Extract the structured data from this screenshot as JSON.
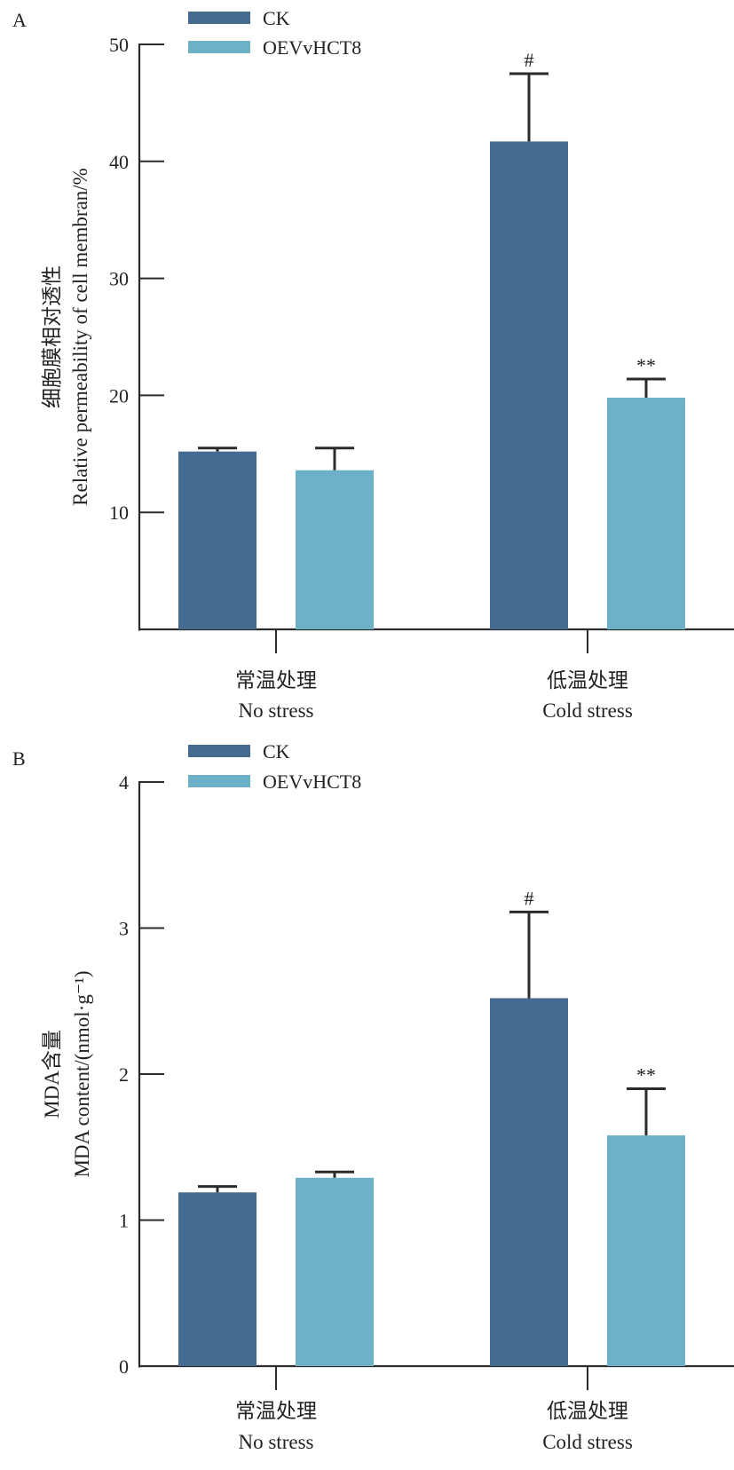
{
  "colors": {
    "CK": "#466b90",
    "OEVvHCT8": "#6cb1c6",
    "axis": "#2b2b2b"
  },
  "chart_data": [
    {
      "type": "bar",
      "panel": "A",
      "title": "",
      "xlabel": "",
      "ylabel_cn": "细胞膜相对透性",
      "ylabel": "Relative permeability of cell membran/%",
      "ylim": [
        0,
        50
      ],
      "yticks": [
        10,
        20,
        30,
        40,
        50
      ],
      "categories": [
        {
          "cn": "常温处理",
          "en": "No stress"
        },
        {
          "cn": "低温处理",
          "en": "Cold stress"
        }
      ],
      "legend": {
        "position": "top-left",
        "entries": [
          "CK",
          "OEVvHCT8"
        ]
      },
      "series": [
        {
          "name": "CK",
          "values": [
            15.2,
            41.7
          ],
          "errors": [
            0.3,
            5.8
          ],
          "annotations": [
            "",
            "#"
          ]
        },
        {
          "name": "OEVvHCT8",
          "values": [
            13.6,
            19.8
          ],
          "errors": [
            1.9,
            1.6
          ],
          "annotations": [
            "",
            "**"
          ]
        }
      ]
    },
    {
      "type": "bar",
      "panel": "B",
      "title": "",
      "xlabel": "",
      "ylabel_cn": "MDA含量",
      "ylabel": "MDA content/(nmol·g⁻¹)",
      "ylim": [
        0,
        4
      ],
      "yticks": [
        0,
        1,
        2,
        3,
        4
      ],
      "categories": [
        {
          "cn": "常温处理",
          "en": "No stress"
        },
        {
          "cn": "低温处理",
          "en": "Cold stress"
        }
      ],
      "legend": {
        "position": "top-left",
        "entries": [
          "CK",
          "OEVvHCT8"
        ]
      },
      "series": [
        {
          "name": "CK",
          "values": [
            1.19,
            2.52
          ],
          "errors": [
            0.04,
            0.59
          ],
          "annotations": [
            "",
            "#"
          ]
        },
        {
          "name": "OEVvHCT8",
          "values": [
            1.29,
            1.58
          ],
          "errors": [
            0.04,
            0.32
          ],
          "annotations": [
            "",
            "**"
          ]
        }
      ]
    }
  ]
}
